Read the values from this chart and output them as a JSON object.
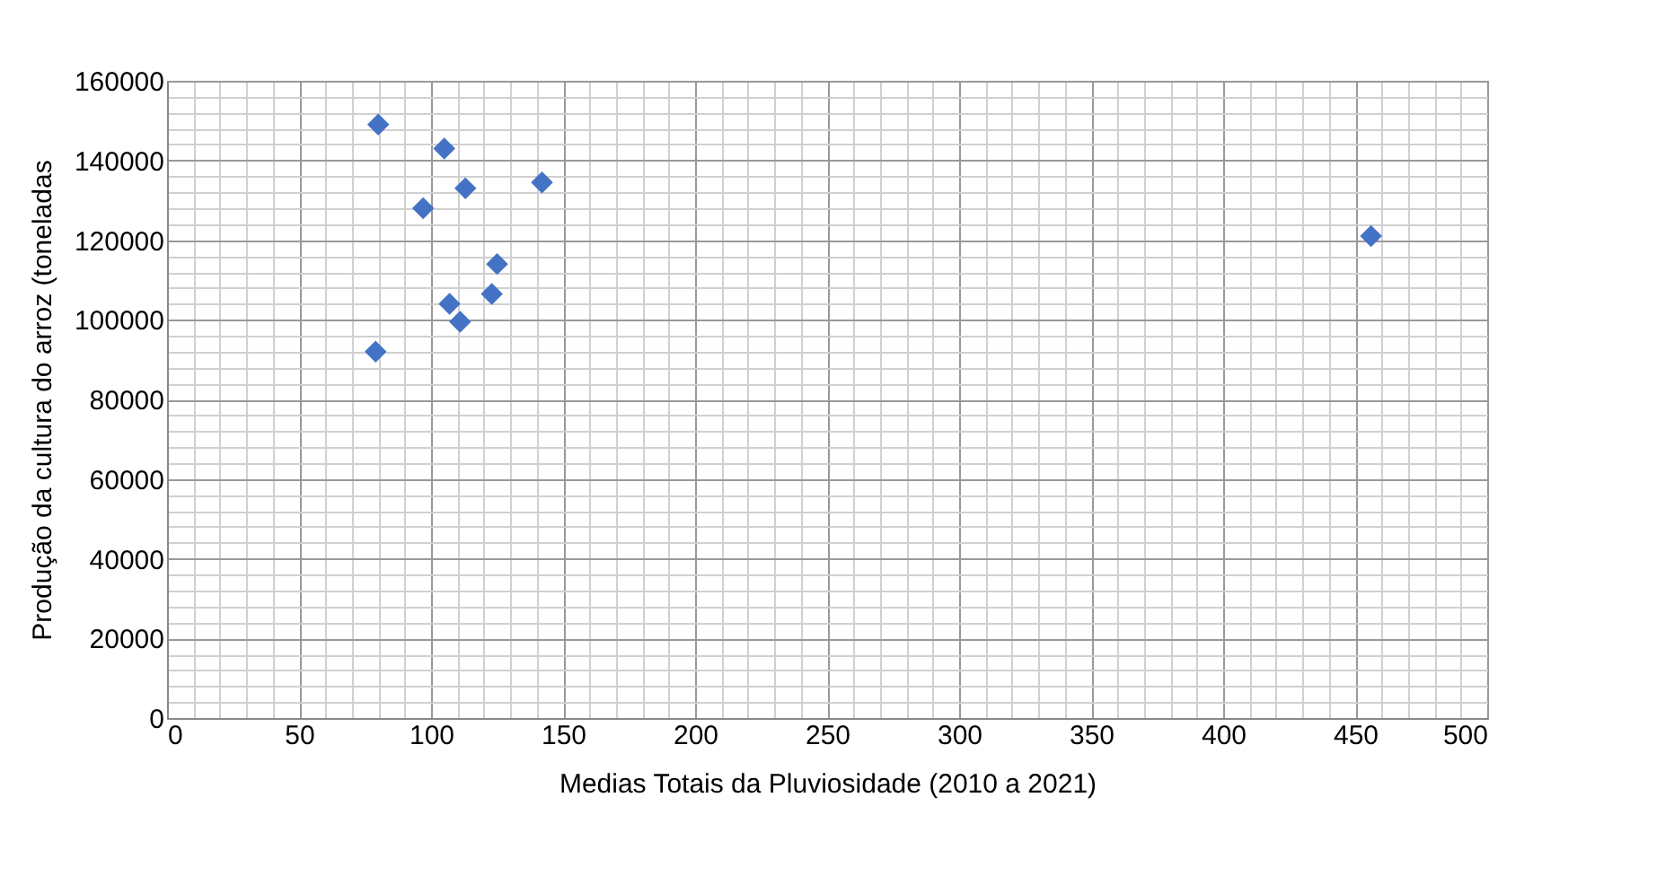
{
  "chart_data": {
    "type": "scatter",
    "xlabel": "Medias Totais da Pluviosidade  (2010 a 2021)",
    "ylabel": "Produção da cultura do arroz  (toneladas",
    "x": [
      80,
      105,
      97,
      113,
      142,
      125,
      123,
      107,
      111,
      79,
      456
    ],
    "series": [
      {
        "color": "#4472c4",
        "values": [
          149000,
          143000,
          128000,
          133000,
          134500,
          114000,
          106500,
          104000,
          99500,
          92000,
          121000
        ]
      }
    ],
    "xlim": [
      0,
      500
    ],
    "xticks": [
      0,
      50,
      100,
      150,
      200,
      250,
      300,
      350,
      400,
      450,
      500
    ],
    "ylim": [
      0,
      160000
    ],
    "yticks": [
      0,
      20000,
      40000,
      60000,
      80000,
      100000,
      120000,
      140000,
      160000
    ],
    "grid": true,
    "marker": "diamond",
    "legend": false
  }
}
